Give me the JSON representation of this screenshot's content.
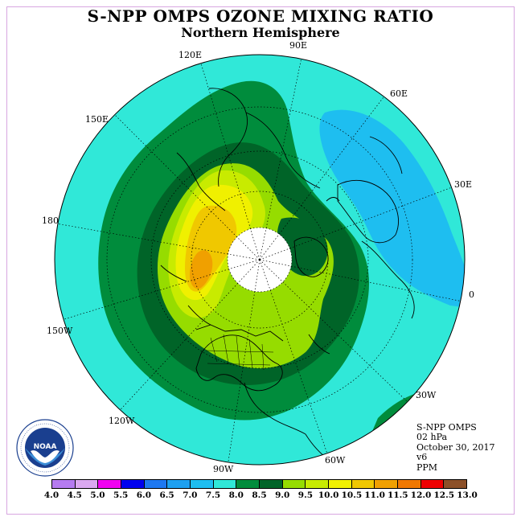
{
  "title": "S-NPP OMPS OZONE MIXING RATIO",
  "subtitle": "Northern Hemisphere",
  "longitude_labels": {
    "lon_90e": "90E",
    "lon_60e": "60E",
    "lon_30e": "30E",
    "lon_0": "0",
    "lon_30w": "30W",
    "lon_60w": "60W",
    "lon_90w": "90W",
    "lon_120w": "120W",
    "lon_150w": "150W",
    "lon_180": "180",
    "lon_150e": "150E",
    "lon_120e": "120E"
  },
  "info": {
    "instrument": "S-NPP OMPS",
    "level": "02 hPa",
    "date": "October 30, 2017",
    "version": "v6",
    "units": "PPM"
  },
  "logo": {
    "text": "NOAA",
    "ring_text": "NATIONAL OCEANIC AND ATMOSPHERIC ADMINISTRATION · U.S. DEPARTMENT OF COMMERCE"
  },
  "colorbar": {
    "labels": [
      "4.0",
      "4.5",
      "5.0",
      "5.5",
      "6.0",
      "6.5",
      "7.0",
      "7.5",
      "8.0",
      "8.5",
      "9.0",
      "9.5",
      "10.0",
      "10.5",
      "11.0",
      "11.5",
      "12.0",
      "12.5",
      "13.0"
    ],
    "colors": [
      "#b57bf0",
      "#dba8f0",
      "#f000f0",
      "#0000ee",
      "#1e78f0",
      "#1ea0f0",
      "#1ebef0",
      "#30e8d8",
      "#008c3c",
      "#006428",
      "#96dc00",
      "#c8eb00",
      "#f0f000",
      "#f0c800",
      "#f0a000",
      "#f07800",
      "#ee0000",
      "#8c5028"
    ]
  },
  "map_data": {
    "projection": "north-polar-stereographic",
    "hemisphere": "Northern",
    "pressure_level_hpa": 2,
    "units": "PPM",
    "max_region": "over Siberia / North Pacific (~10.5–11.0 PPM)",
    "min_region": "over Europe / North Atlantic (~7.0–7.5 PPM)"
  }
}
